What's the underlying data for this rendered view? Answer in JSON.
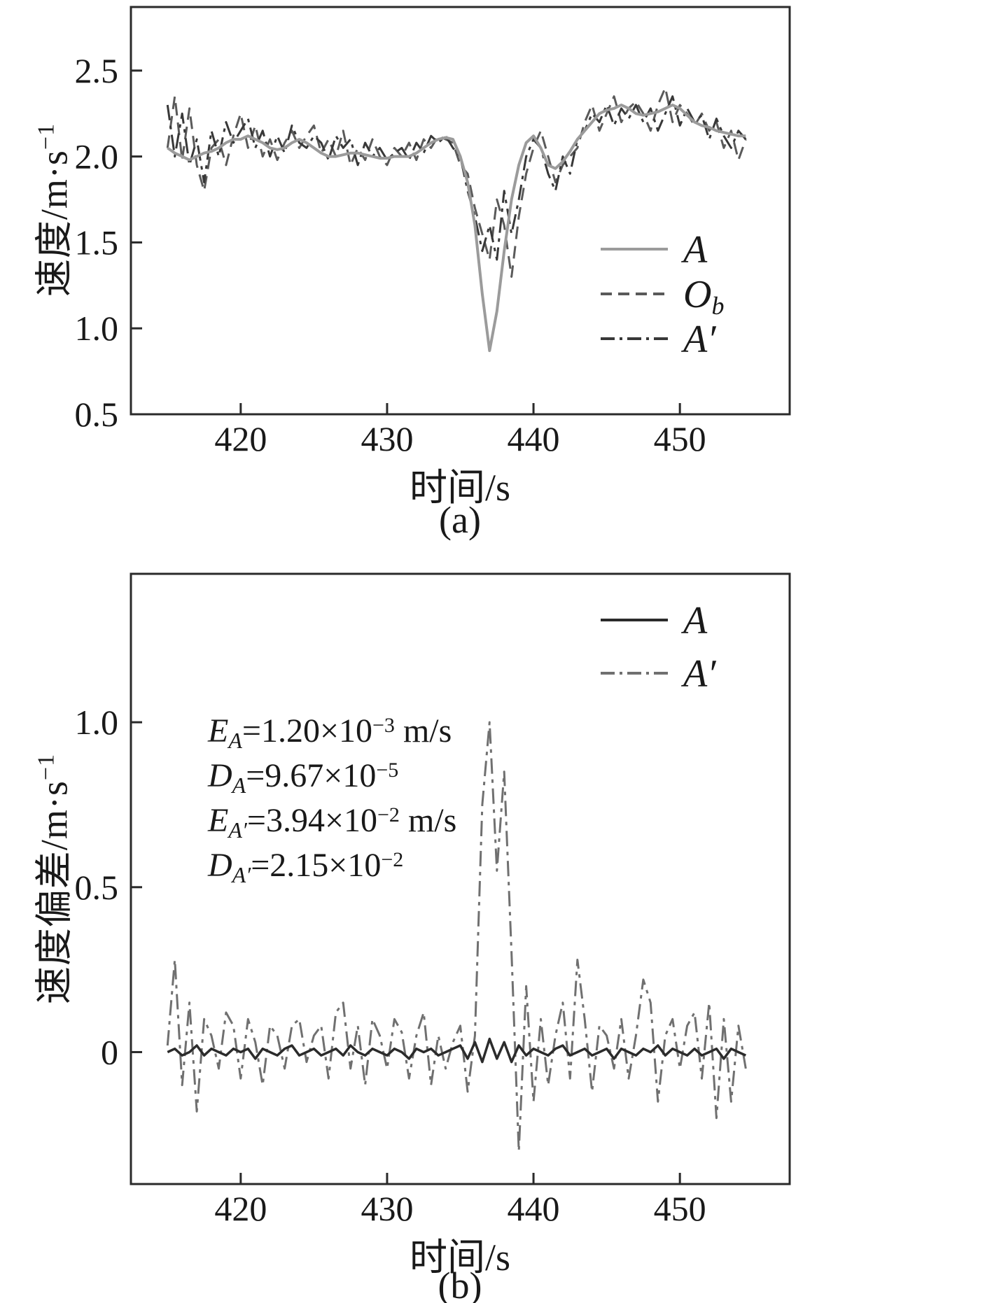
{
  "chart_data": [
    {
      "type": "line",
      "panel": "(a)",
      "title": "",
      "xlabel": "时间/s",
      "ylabel_main": "速度/m·s",
      "ylabel_sup": "−1",
      "xlim": [
        412.5,
        457.5
      ],
      "ylim": [
        0.5,
        2.87
      ],
      "xtick_values": [
        420,
        430,
        440,
        450
      ],
      "xtick_labels": [
        "420",
        "430",
        "440",
        "450"
      ],
      "ytick_values": [
        0.5,
        1.0,
        1.5,
        2.0,
        2.5
      ],
      "ytick_labels": [
        "0.5",
        "1.0",
        "1.5",
        "2.0",
        "2.5"
      ],
      "x_start": 415,
      "x_step": 0.5,
      "grid": false,
      "legend_position": "middle-right",
      "legend": [
        {
          "label": "A",
          "sub": "",
          "style": "solid",
          "color": "#9b9b9b"
        },
        {
          "label": "O",
          "sub": "b",
          "style": "dashed",
          "color": "#5a5a5a"
        },
        {
          "label": "A′",
          "sub": "",
          "style": "dashdot",
          "color": "#383838"
        }
      ],
      "series": [
        {
          "id": "Ob",
          "style": "dashed",
          "color": "#5a5a5a",
          "width": 3,
          "values": [
            2.05,
            2.35,
            1.98,
            2.28,
            1.95,
            1.8,
            2.05,
            2.1,
            1.95,
            2.12,
            2.25,
            2.05,
            2.18,
            2.0,
            2.1,
            1.98,
            2.08,
            2.15,
            2.05,
            2.12,
            2.18,
            2.02,
            2.1,
            2.0,
            2.15,
            1.95,
            2.05,
            1.98,
            2.1,
            2.0,
            1.95,
            2.05,
            2.0,
            2.08,
            1.98,
            2.1,
            2.05,
            2.12,
            2.1,
            2.08,
            1.95,
            1.9,
            1.7,
            1.55,
            1.4,
            1.75,
            1.6,
            1.3,
            1.65,
            1.9,
            2.05,
            2.15,
            2.0,
            1.85,
            1.95,
            2.0,
            2.05,
            2.2,
            2.3,
            2.15,
            2.25,
            2.35,
            2.2,
            2.28,
            2.32,
            2.25,
            2.15,
            2.3,
            2.4,
            2.2,
            2.3,
            2.25,
            2.18,
            2.25,
            2.15,
            2.2,
            2.05,
            2.15,
            1.98,
            2.1
          ]
        },
        {
          "id": "A-prime",
          "style": "dashdot",
          "color": "#383838",
          "width": 3,
          "values": [
            2.3,
            2.0,
            2.25,
            1.95,
            2.1,
            1.85,
            2.15,
            2.0,
            2.2,
            2.08,
            2.15,
            2.22,
            2.05,
            2.15,
            2.0,
            2.12,
            2.02,
            2.18,
            2.08,
            2.05,
            2.12,
            2.08,
            1.98,
            2.12,
            2.05,
            2.1,
            1.95,
            2.08,
            2.0,
            2.05,
            1.98,
            2.02,
            2.05,
            1.98,
            2.08,
            2.02,
            2.12,
            2.08,
            2.12,
            2.05,
            2.0,
            1.8,
            1.65,
            1.45,
            1.6,
            1.4,
            1.8,
            1.55,
            1.75,
            2.0,
            2.1,
            2.05,
            1.9,
            1.8,
            2.0,
            1.9,
            2.1,
            2.15,
            2.25,
            2.2,
            2.3,
            2.18,
            2.28,
            2.22,
            2.3,
            2.2,
            2.28,
            2.15,
            2.25,
            2.35,
            2.18,
            2.28,
            2.2,
            2.24,
            2.1,
            2.22,
            2.12,
            2.05,
            2.15,
            2.1
          ]
        },
        {
          "id": "A",
          "style": "solid",
          "color": "#9b9b9b",
          "width": 4,
          "values": [
            2.05,
            2.02,
            2.0,
            1.98,
            2.0,
            2.02,
            2.03,
            2.05,
            2.08,
            2.1,
            2.1,
            2.12,
            2.1,
            2.08,
            2.05,
            2.04,
            2.05,
            2.08,
            2.1,
            2.08,
            2.05,
            2.02,
            2.0,
            2.0,
            2.01,
            2.02,
            2.02,
            2.01,
            2.0,
            1.99,
            1.99,
            2.0,
            2.0,
            2.0,
            2.02,
            2.05,
            2.08,
            2.1,
            2.11,
            2.1,
            2.0,
            1.85,
            1.6,
            1.2,
            0.87,
            1.1,
            1.45,
            1.75,
            1.95,
            2.08,
            2.12,
            2.05,
            1.95,
            1.93,
            1.97,
            2.03,
            2.1,
            2.15,
            2.2,
            2.25,
            2.27,
            2.28,
            2.3,
            2.28,
            2.25,
            2.24,
            2.25,
            2.26,
            2.28,
            2.3,
            2.28,
            2.24,
            2.2,
            2.18,
            2.17,
            2.15,
            2.14,
            2.13,
            2.12,
            2.12
          ]
        }
      ]
    },
    {
      "type": "line",
      "panel": "(b)",
      "title": "",
      "xlabel": "时间/s",
      "ylabel_main": "速度偏差/m·s",
      "ylabel_sup": "−1",
      "xlim": [
        412.5,
        457.5
      ],
      "ylim": [
        -0.4,
        1.45
      ],
      "xtick_values": [
        420,
        430,
        440,
        450
      ],
      "xtick_labels": [
        "420",
        "430",
        "440",
        "450"
      ],
      "ytick_values": [
        0,
        0.5,
        1.0
      ],
      "ytick_labels": [
        "0",
        "0.5",
        "1.0"
      ],
      "x_start": 415,
      "x_step": 0.5,
      "grid": false,
      "legend_position": "top-right",
      "legend": [
        {
          "label": "A",
          "sub": "",
          "style": "solid",
          "color": "#2b2b2b"
        },
        {
          "label": "A′",
          "sub": "",
          "style": "dashdot",
          "color": "#707070"
        }
      ],
      "annotations": [
        {
          "sym": "E",
          "sub": "A",
          "rest": "=1.20×10",
          "sup": "−3",
          "unit": " m/s"
        },
        {
          "sym": "D",
          "sub": "A",
          "rest": "=9.67×10",
          "sup": "−5",
          "unit": ""
        },
        {
          "sym": "E",
          "sub": "A′",
          "rest": "=3.94×10",
          "sup": "−2",
          "unit": " m/s"
        },
        {
          "sym": "D",
          "sub": "A′",
          "rest": "=2.15×10",
          "sup": "−2",
          "unit": ""
        }
      ],
      "series": [
        {
          "id": "A-prime",
          "style": "dashdot",
          "color": "#707070",
          "width": 3,
          "values": [
            0.02,
            0.28,
            -0.1,
            0.15,
            -0.18,
            0.1,
            0.05,
            -0.05,
            0.12,
            0.08,
            -0.08,
            0.1,
            0.03,
            -0.1,
            0.08,
            0.05,
            -0.05,
            0.08,
            0.1,
            -0.03,
            0.05,
            0.08,
            -0.08,
            0.12,
            0.15,
            -0.05,
            0.08,
            -0.1,
            0.1,
            0.05,
            -0.05,
            0.1,
            0.06,
            -0.08,
            0.05,
            0.12,
            -0.1,
            0.05,
            -0.05,
            0.03,
            0.08,
            -0.12,
            0.05,
            0.75,
            1.0,
            0.55,
            0.85,
            0.3,
            -0.3,
            0.2,
            -0.15,
            0.1,
            -0.1,
            0.05,
            0.15,
            -0.08,
            0.28,
            0.1,
            -0.12,
            0.08,
            0.05,
            -0.05,
            0.1,
            -0.08,
            0.05,
            0.22,
            0.15,
            -0.15,
            0.05,
            0.1,
            -0.05,
            0.08,
            0.12,
            -0.08,
            0.15,
            -0.2,
            0.1,
            -0.15,
            0.08,
            -0.05
          ]
        },
        {
          "id": "A",
          "style": "solid",
          "color": "#2b2b2b",
          "width": 3.5,
          "values": [
            0.0,
            0.01,
            -0.01,
            0.0,
            0.02,
            -0.01,
            0.01,
            0.0,
            -0.01,
            0.01,
            0.0,
            0.01,
            -0.02,
            0.01,
            0.0,
            -0.01,
            0.01,
            0.02,
            -0.01,
            0.0,
            0.01,
            -0.01,
            0.0,
            0.01,
            -0.01,
            0.02,
            0.0,
            -0.01,
            0.01,
            0.0,
            -0.01,
            0.01,
            0.0,
            -0.02,
            0.01,
            0.0,
            0.01,
            -0.01,
            0.0,
            0.01,
            0.02,
            -0.02,
            0.03,
            -0.03,
            0.04,
            -0.02,
            0.03,
            -0.03,
            0.02,
            -0.01,
            0.01,
            0.0,
            -0.01,
            0.01,
            0.02,
            -0.01,
            0.0,
            0.01,
            -0.01,
            0.0,
            0.01,
            -0.02,
            0.01,
            0.0,
            -0.01,
            0.01,
            0.0,
            0.02,
            -0.01,
            0.01,
            0.0,
            -0.01,
            0.01,
            -0.01,
            0.0,
            0.01,
            -0.02,
            0.01,
            0.0,
            -0.01
          ]
        }
      ]
    }
  ]
}
